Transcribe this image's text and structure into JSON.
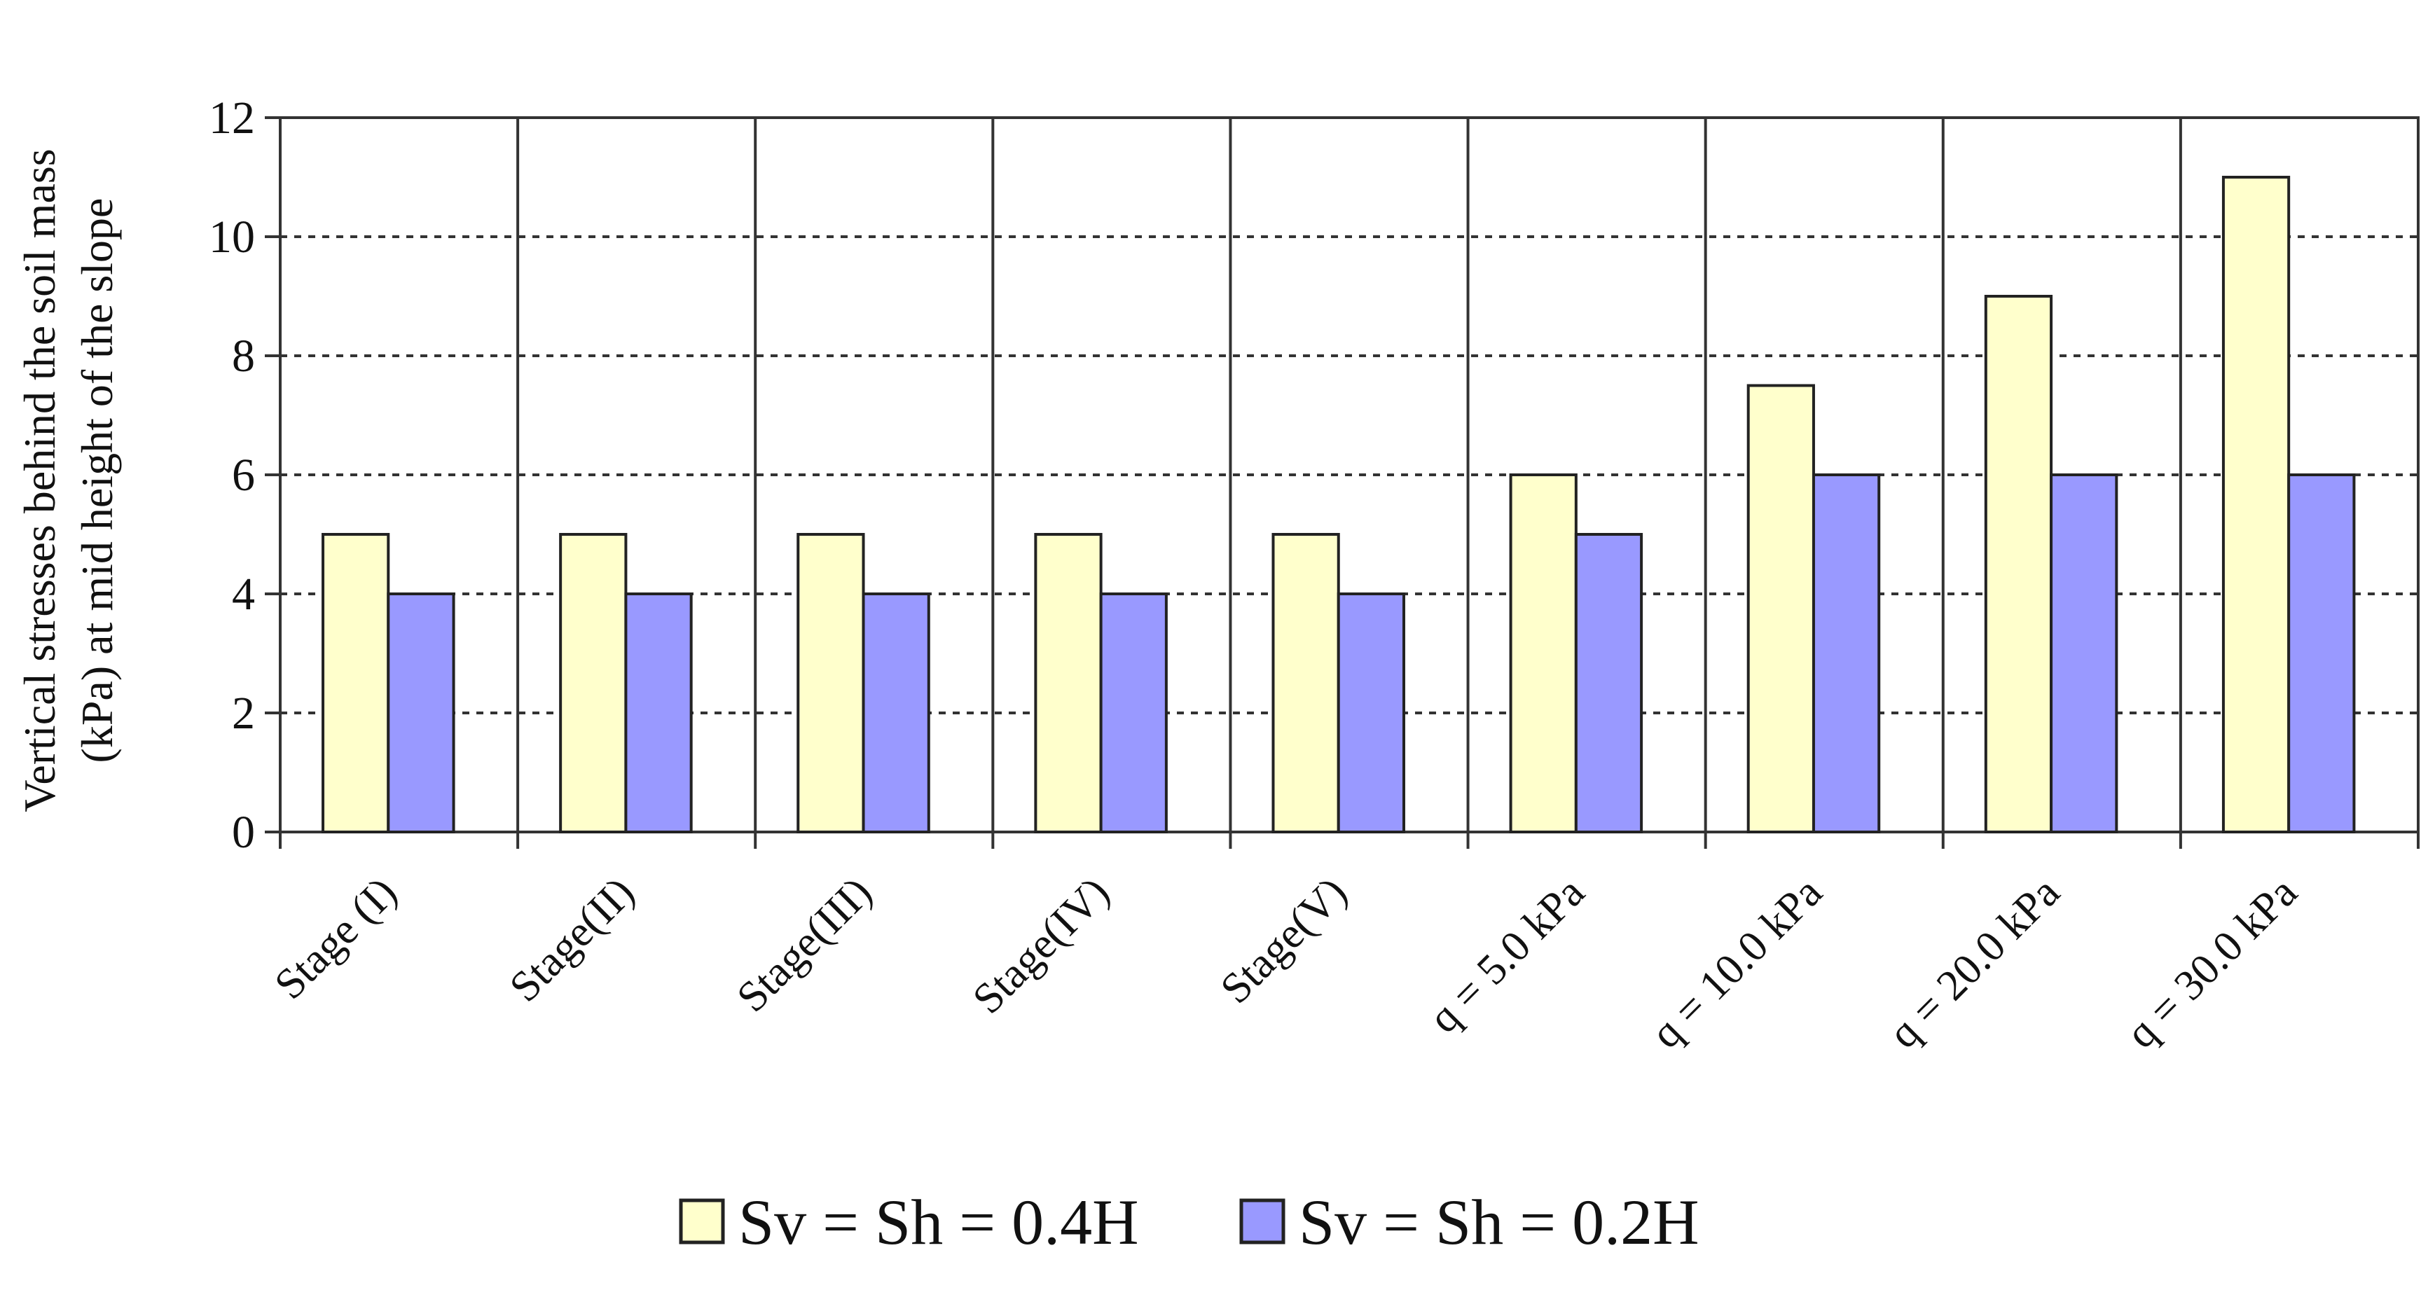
{
  "chart_data": {
    "type": "bar",
    "title": "",
    "xlabel": "",
    "ylabel_lines": [
      "Vertical stresses behind the soil mass",
      "(kPa) at mid height of the slope"
    ],
    "categories": [
      "Stage (I)",
      "Stage(II)",
      "Stage(III)",
      "Stage(IV)",
      "Stage(V)",
      "q = 5.0 kPa",
      "q = 10.0 kPa",
      "q = 20.0 kPa",
      "q = 30.0 kPa"
    ],
    "series": [
      {
        "name": "Sv = Sh = 0.4H",
        "values": [
          5,
          5,
          5,
          5,
          5,
          6,
          7.5,
          9,
          11
        ],
        "color": "#FFFFCC"
      },
      {
        "name": "Sv = Sh = 0.2H",
        "values": [
          4,
          4,
          4,
          4,
          4,
          5,
          6,
          6,
          6
        ],
        "color": "#9999FF"
      }
    ],
    "ylim": [
      0,
      12
    ],
    "yticks": [
      0,
      2,
      4,
      6,
      8,
      10,
      12
    ],
    "grid": "horizontal dashed",
    "category_separators": true,
    "legend_position": "bottom-center"
  }
}
